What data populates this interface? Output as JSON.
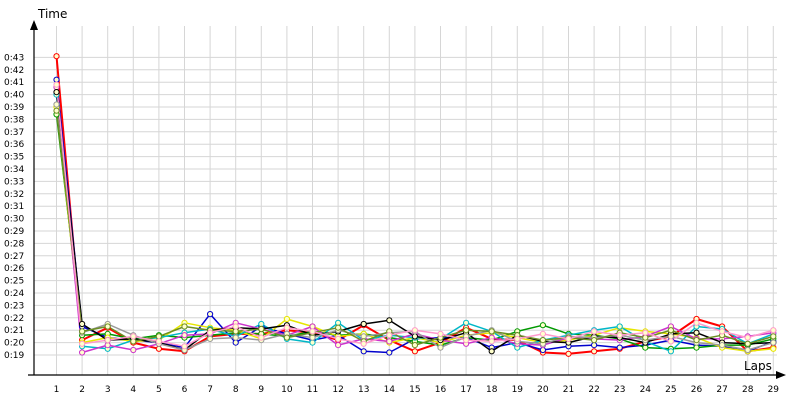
{
  "chart_data": {
    "type": "line",
    "title": "",
    "xlabel": "Laps",
    "ylabel": "Time",
    "grid": true,
    "legend": "none",
    "x": [
      1,
      2,
      3,
      4,
      5,
      6,
      7,
      8,
      9,
      10,
      11,
      12,
      13,
      14,
      15,
      16,
      17,
      18,
      19,
      20,
      21,
      22,
      23,
      24,
      25,
      26,
      27,
      28,
      29
    ],
    "xlim": [
      0.2,
      29
    ],
    "ylim": [
      17.3,
      44.5
    ],
    "y_ticks": [
      19,
      20,
      21,
      22,
      23,
      24,
      25,
      26,
      27,
      28,
      29,
      30,
      31,
      32,
      33,
      34,
      35,
      36,
      37,
      38,
      39,
      40,
      41,
      42,
      43
    ],
    "y_tick_labels": [
      "0:19",
      "0:20",
      "0:21",
      "0:22",
      "0:23",
      "0:24",
      "0:25",
      "0:26",
      "0:27",
      "0:28",
      "0:29",
      "0:30",
      "0:31",
      "0:32",
      "0:33",
      "0:34",
      "0:35",
      "0:36",
      "0:37",
      "0:38",
      "0:39",
      "0:40",
      "0:41",
      "0:42",
      "0:43"
    ],
    "x_tick_labels": [
      "1",
      "2",
      "3",
      "4",
      "5",
      "6",
      "7",
      "8",
      "9",
      "10",
      "11",
      "12",
      "13",
      "14",
      "15",
      "16",
      "17",
      "18",
      "19",
      "20",
      "21",
      "22",
      "23",
      "24",
      "25",
      "26",
      "27",
      "28",
      "29"
    ],
    "series": [
      {
        "color": "#ff0000",
        "values": [
          43.1,
          20.2,
          21.2,
          20.0,
          19.5,
          19.3,
          20.5,
          20.7,
          20.7,
          21.0,
          20.8,
          20.2,
          21.4,
          20.2,
          19.3,
          20.0,
          21.2,
          20.3,
          20.2,
          19.2,
          19.1,
          19.3,
          19.5,
          20.1,
          20.5,
          21.9,
          21.3,
          19.3,
          19.6
        ]
      },
      {
        "color": "#0000cc",
        "values": [
          41.2,
          21.3,
          20.4,
          20.2,
          20.0,
          19.6,
          22.3,
          20.0,
          21.3,
          20.7,
          20.2,
          20.6,
          19.3,
          19.2,
          20.3,
          20.4,
          20.4,
          19.6,
          20.0,
          19.4,
          19.7,
          19.8,
          19.6,
          19.8,
          20.2,
          19.8,
          19.7,
          19.3,
          20.1
        ]
      },
      {
        "color": "#009900",
        "values": [
          38.4,
          20.6,
          20.7,
          20.3,
          20.6,
          20.4,
          20.6,
          20.8,
          20.7,
          20.5,
          20.9,
          20.6,
          20.7,
          20.4,
          20.1,
          19.8,
          20.4,
          20.2,
          20.9,
          21.4,
          20.7,
          20.6,
          20.3,
          19.6,
          19.5,
          19.6,
          19.8,
          19.8,
          20.3
        ]
      },
      {
        "color": "#e6e600",
        "values": [
          39.0,
          20.0,
          20.4,
          20.1,
          20.2,
          21.6,
          21.2,
          21.0,
          20.3,
          21.9,
          21.3,
          20.5,
          20.7,
          20.0,
          20.4,
          20.0,
          20.6,
          20.8,
          20.4,
          20.0,
          20.2,
          20.6,
          21.2,
          20.9,
          20.7,
          20.4,
          19.6,
          19.3,
          19.5
        ]
      },
      {
        "color": "#00b7c7",
        "values": [
          40.0,
          19.7,
          19.5,
          20.2,
          20.4,
          20.8,
          21.1,
          20.5,
          21.5,
          20.3,
          20.0,
          21.6,
          20.2,
          20.6,
          20.4,
          20.3,
          21.6,
          20.9,
          19.6,
          20.2,
          20.6,
          21.0,
          21.3,
          20.1,
          19.3,
          21.3,
          21.1,
          19.9,
          20.7
        ]
      },
      {
        "color": "#cc33cc",
        "values": [
          40.6,
          19.2,
          19.8,
          19.4,
          19.9,
          20.6,
          20.7,
          21.6,
          21.1,
          20.6,
          21.3,
          19.8,
          20.3,
          20.1,
          20.7,
          20.2,
          19.9,
          20.4,
          19.9,
          19.8,
          20.4,
          20.3,
          20.2,
          20.5,
          21.3,
          20.3,
          20.3,
          20.5,
          20.8
        ]
      },
      {
        "color": "#000000",
        "values": [
          40.2,
          21.5,
          20.2,
          20.3,
          20.0,
          19.4,
          21.0,
          21.2,
          21.1,
          21.4,
          20.6,
          20.9,
          21.5,
          21.8,
          20.5,
          20.2,
          20.8,
          19.3,
          20.6,
          20.1,
          20.0,
          20.5,
          20.4,
          20.0,
          20.7,
          20.8,
          20.0,
          19.9,
          20.0
        ]
      },
      {
        "color": "#999999",
        "values": [
          39.2,
          20.8,
          21.5,
          20.6,
          19.9,
          19.4,
          20.3,
          20.4,
          20.2,
          20.7,
          20.4,
          21.0,
          20.5,
          20.8,
          20.9,
          19.6,
          20.5,
          21.0,
          20.1,
          19.9,
          20.5,
          20.4,
          20.6,
          20.2,
          20.5,
          20.0,
          19.8,
          19.4,
          20.0
        ]
      },
      {
        "color": "#6b8e23",
        "values": [
          38.7,
          20.9,
          21.3,
          20.1,
          20.5,
          21.3,
          21.0,
          20.9,
          21.1,
          20.4,
          20.8,
          21.2,
          20.1,
          20.9,
          19.8,
          20.4,
          21.0,
          20.9,
          20.6,
          20.2,
          20.4,
          20.2,
          20.8,
          20.4,
          21.0,
          20.2,
          20.6,
          19.9,
          20.5
        ]
      },
      {
        "color": "#ff99cc",
        "values": [
          40.8,
          19.9,
          20.2,
          20.5,
          20.1,
          19.7,
          20.8,
          21.3,
          20.4,
          21.2,
          20.9,
          20.3,
          19.9,
          20.6,
          21.0,
          20.7,
          20.2,
          20.1,
          20.3,
          20.7,
          20.3,
          20.9,
          20.6,
          20.8,
          20.1,
          21.6,
          20.9,
          20.4,
          21.0
        ]
      }
    ]
  }
}
